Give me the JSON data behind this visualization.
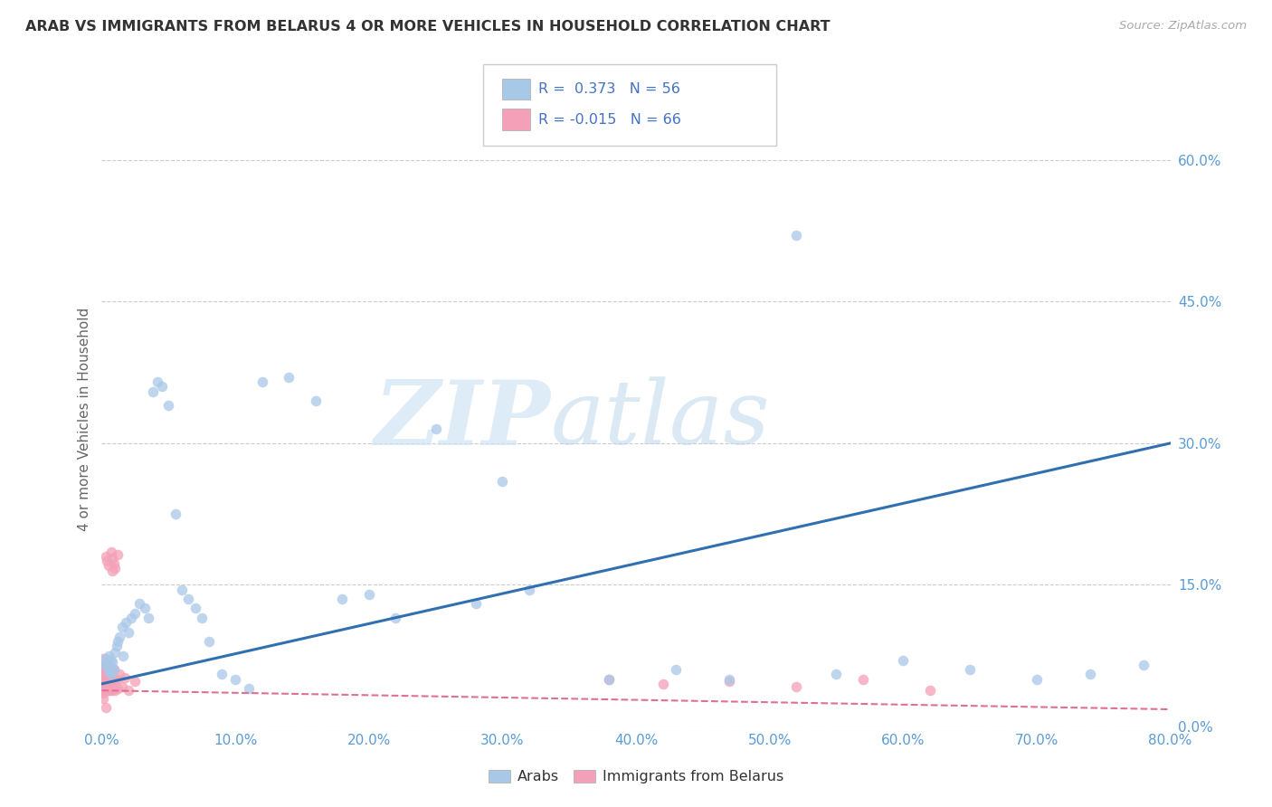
{
  "title": "ARAB VS IMMIGRANTS FROM BELARUS 4 OR MORE VEHICLES IN HOUSEHOLD CORRELATION CHART",
  "source": "Source: ZipAtlas.com",
  "ylabel": "4 or more Vehicles in Household",
  "xlim": [
    0.0,
    0.8
  ],
  "ylim": [
    0.0,
    0.65
  ],
  "yticks": [
    0.0,
    0.15,
    0.3,
    0.45,
    0.6
  ],
  "xticks": [
    0.0,
    0.1,
    0.2,
    0.3,
    0.4,
    0.5,
    0.6,
    0.7,
    0.8
  ],
  "arab_color": "#a8c8e8",
  "belarus_color": "#f4a0b8",
  "trend_arab_color": "#3070b0",
  "trend_belarus_color": "#e07090",
  "R_arab": 0.373,
  "N_arab": 56,
  "R_belarus": -0.015,
  "N_belarus": 66,
  "watermark_zip": "ZIP",
  "watermark_atlas": "atlas",
  "arab_trend_x0": 0.0,
  "arab_trend_y0": 0.045,
  "arab_trend_x1": 0.8,
  "arab_trend_y1": 0.3,
  "belarus_trend_x0": 0.0,
  "belarus_trend_y0": 0.038,
  "belarus_trend_x1": 0.8,
  "belarus_trend_y1": 0.018,
  "arab_x": [
    0.002,
    0.003,
    0.004,
    0.005,
    0.005,
    0.006,
    0.007,
    0.007,
    0.008,
    0.009,
    0.01,
    0.011,
    0.012,
    0.013,
    0.015,
    0.016,
    0.018,
    0.02,
    0.022,
    0.025,
    0.028,
    0.032,
    0.035,
    0.038,
    0.042,
    0.045,
    0.05,
    0.055,
    0.06,
    0.065,
    0.07,
    0.075,
    0.08,
    0.09,
    0.1,
    0.11,
    0.12,
    0.14,
    0.16,
    0.18,
    0.2,
    0.22,
    0.25,
    0.28,
    0.3,
    0.32,
    0.38,
    0.43,
    0.47,
    0.52,
    0.55,
    0.6,
    0.65,
    0.7,
    0.74,
    0.78
  ],
  "arab_y": [
    0.065,
    0.072,
    0.068,
    0.058,
    0.075,
    0.062,
    0.07,
    0.055,
    0.068,
    0.06,
    0.078,
    0.085,
    0.09,
    0.095,
    0.105,
    0.075,
    0.11,
    0.1,
    0.115,
    0.12,
    0.13,
    0.125,
    0.115,
    0.355,
    0.365,
    0.36,
    0.34,
    0.225,
    0.145,
    0.135,
    0.125,
    0.115,
    0.09,
    0.055,
    0.05,
    0.04,
    0.365,
    0.37,
    0.345,
    0.135,
    0.14,
    0.115,
    0.315,
    0.13,
    0.26,
    0.145,
    0.05,
    0.06,
    0.05,
    0.52,
    0.055,
    0.07,
    0.06,
    0.05,
    0.055,
    0.065
  ],
  "belarus_x": [
    0.001,
    0.001,
    0.001,
    0.001,
    0.001,
    0.001,
    0.001,
    0.001,
    0.001,
    0.001,
    0.002,
    0.002,
    0.002,
    0.002,
    0.002,
    0.002,
    0.002,
    0.003,
    0.003,
    0.003,
    0.003,
    0.003,
    0.003,
    0.004,
    0.004,
    0.004,
    0.004,
    0.004,
    0.005,
    0.005,
    0.005,
    0.005,
    0.006,
    0.006,
    0.006,
    0.007,
    0.007,
    0.007,
    0.008,
    0.008,
    0.009,
    0.009,
    0.01,
    0.011,
    0.012,
    0.013,
    0.015,
    0.017,
    0.02,
    0.025,
    0.003,
    0.004,
    0.005,
    0.007,
    0.008,
    0.009,
    0.01,
    0.012,
    0.008,
    0.003,
    0.38,
    0.42,
    0.47,
    0.52,
    0.57,
    0.62
  ],
  "belarus_y": [
    0.03,
    0.042,
    0.055,
    0.065,
    0.038,
    0.048,
    0.058,
    0.072,
    0.035,
    0.045,
    0.06,
    0.038,
    0.048,
    0.055,
    0.065,
    0.042,
    0.052,
    0.058,
    0.04,
    0.05,
    0.065,
    0.038,
    0.048,
    0.06,
    0.038,
    0.05,
    0.04,
    0.055,
    0.045,
    0.038,
    0.055,
    0.065,
    0.042,
    0.052,
    0.038,
    0.048,
    0.06,
    0.042,
    0.052,
    0.038,
    0.048,
    0.06,
    0.038,
    0.05,
    0.04,
    0.055,
    0.042,
    0.052,
    0.038,
    0.048,
    0.18,
    0.175,
    0.17,
    0.185,
    0.178,
    0.172,
    0.168,
    0.182,
    0.165,
    0.02,
    0.05,
    0.045,
    0.048,
    0.042,
    0.05,
    0.038
  ]
}
